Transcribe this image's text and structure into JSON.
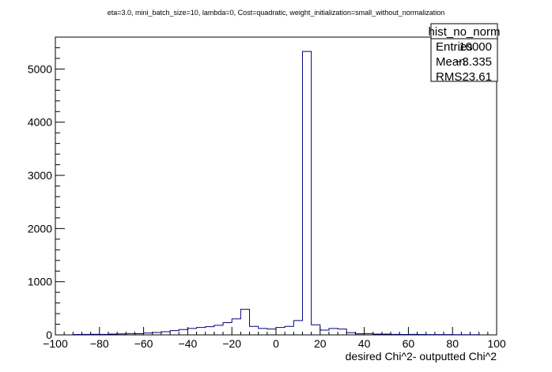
{
  "chart_data": {
    "type": "histogram",
    "title": "eta=3.0, mini_batch_size=10, lambda=0, Cost=quadratic, weight_initialization=small_without_normalization",
    "xlabel": "desired Chi^2- outputted Chi^2",
    "ylabel": "",
    "xlim": [
      -100,
      100
    ],
    "ylim": [
      0,
      5600
    ],
    "x_ticks": [
      -100,
      -80,
      -60,
      -40,
      -20,
      0,
      20,
      40,
      60,
      80,
      100
    ],
    "y_ticks": [
      0,
      1000,
      2000,
      3000,
      4000,
      5000
    ],
    "bin_width": 4,
    "bin_edges_start": -92,
    "bin_counts": [
      8,
      10,
      12,
      10,
      15,
      18,
      25,
      22,
      35,
      45,
      60,
      80,
      100,
      120,
      140,
      155,
      180,
      230,
      300,
      480,
      160,
      120,
      110,
      140,
      160,
      270,
      5330,
      190,
      90,
      120,
      110,
      40,
      20,
      25,
      15,
      15,
      10,
      8,
      10,
      8,
      6,
      5,
      5,
      4,
      4,
      3
    ],
    "line_color": "#000080",
    "stats_box": {
      "name": "hist_no_norm",
      "rows": [
        {
          "label": "Entries",
          "value": "10000"
        },
        {
          "label": "Mean",
          "value": "−3.335"
        },
        {
          "label": "RMS",
          "value": "23.61"
        }
      ]
    }
  }
}
